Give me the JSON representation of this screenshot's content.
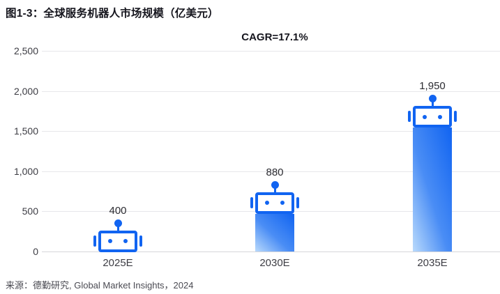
{
  "header": {
    "title": "图1-3：全球服务机器人市场规模（亿美元）"
  },
  "annotation": {
    "cagr": "CAGR=17.1%"
  },
  "footer": {
    "source": "来源：德勤研究, Global Market Insights，2024"
  },
  "colors": {
    "robot_blue": "#1164f1",
    "robot_gradient_mid": "#4a8df5",
    "robot_gradient_light": "#b9dafc",
    "grid": "#e7e7ea",
    "title_text": "#15151d",
    "axis_text": "#3d3d44"
  },
  "chart_data": {
    "type": "bar",
    "title": "全球服务机器人市场规模（亿美元）",
    "categories": [
      "2025E",
      "2030E",
      "2035E"
    ],
    "values": [
      400,
      880,
      1950
    ],
    "value_labels": [
      "400",
      "880",
      "1,950"
    ],
    "series_annotation": "CAGR=17.1%",
    "xlabel": "",
    "ylabel": "",
    "ylim": [
      0,
      2500
    ],
    "yticks": [
      0,
      500,
      1000,
      1500,
      2000,
      2500
    ],
    "ytick_labels": [
      "0",
      "500",
      "1,000",
      "1,500",
      "2,000",
      "2,500"
    ],
    "grid": true,
    "legend": false,
    "bar_style": "robot-pictogram"
  }
}
